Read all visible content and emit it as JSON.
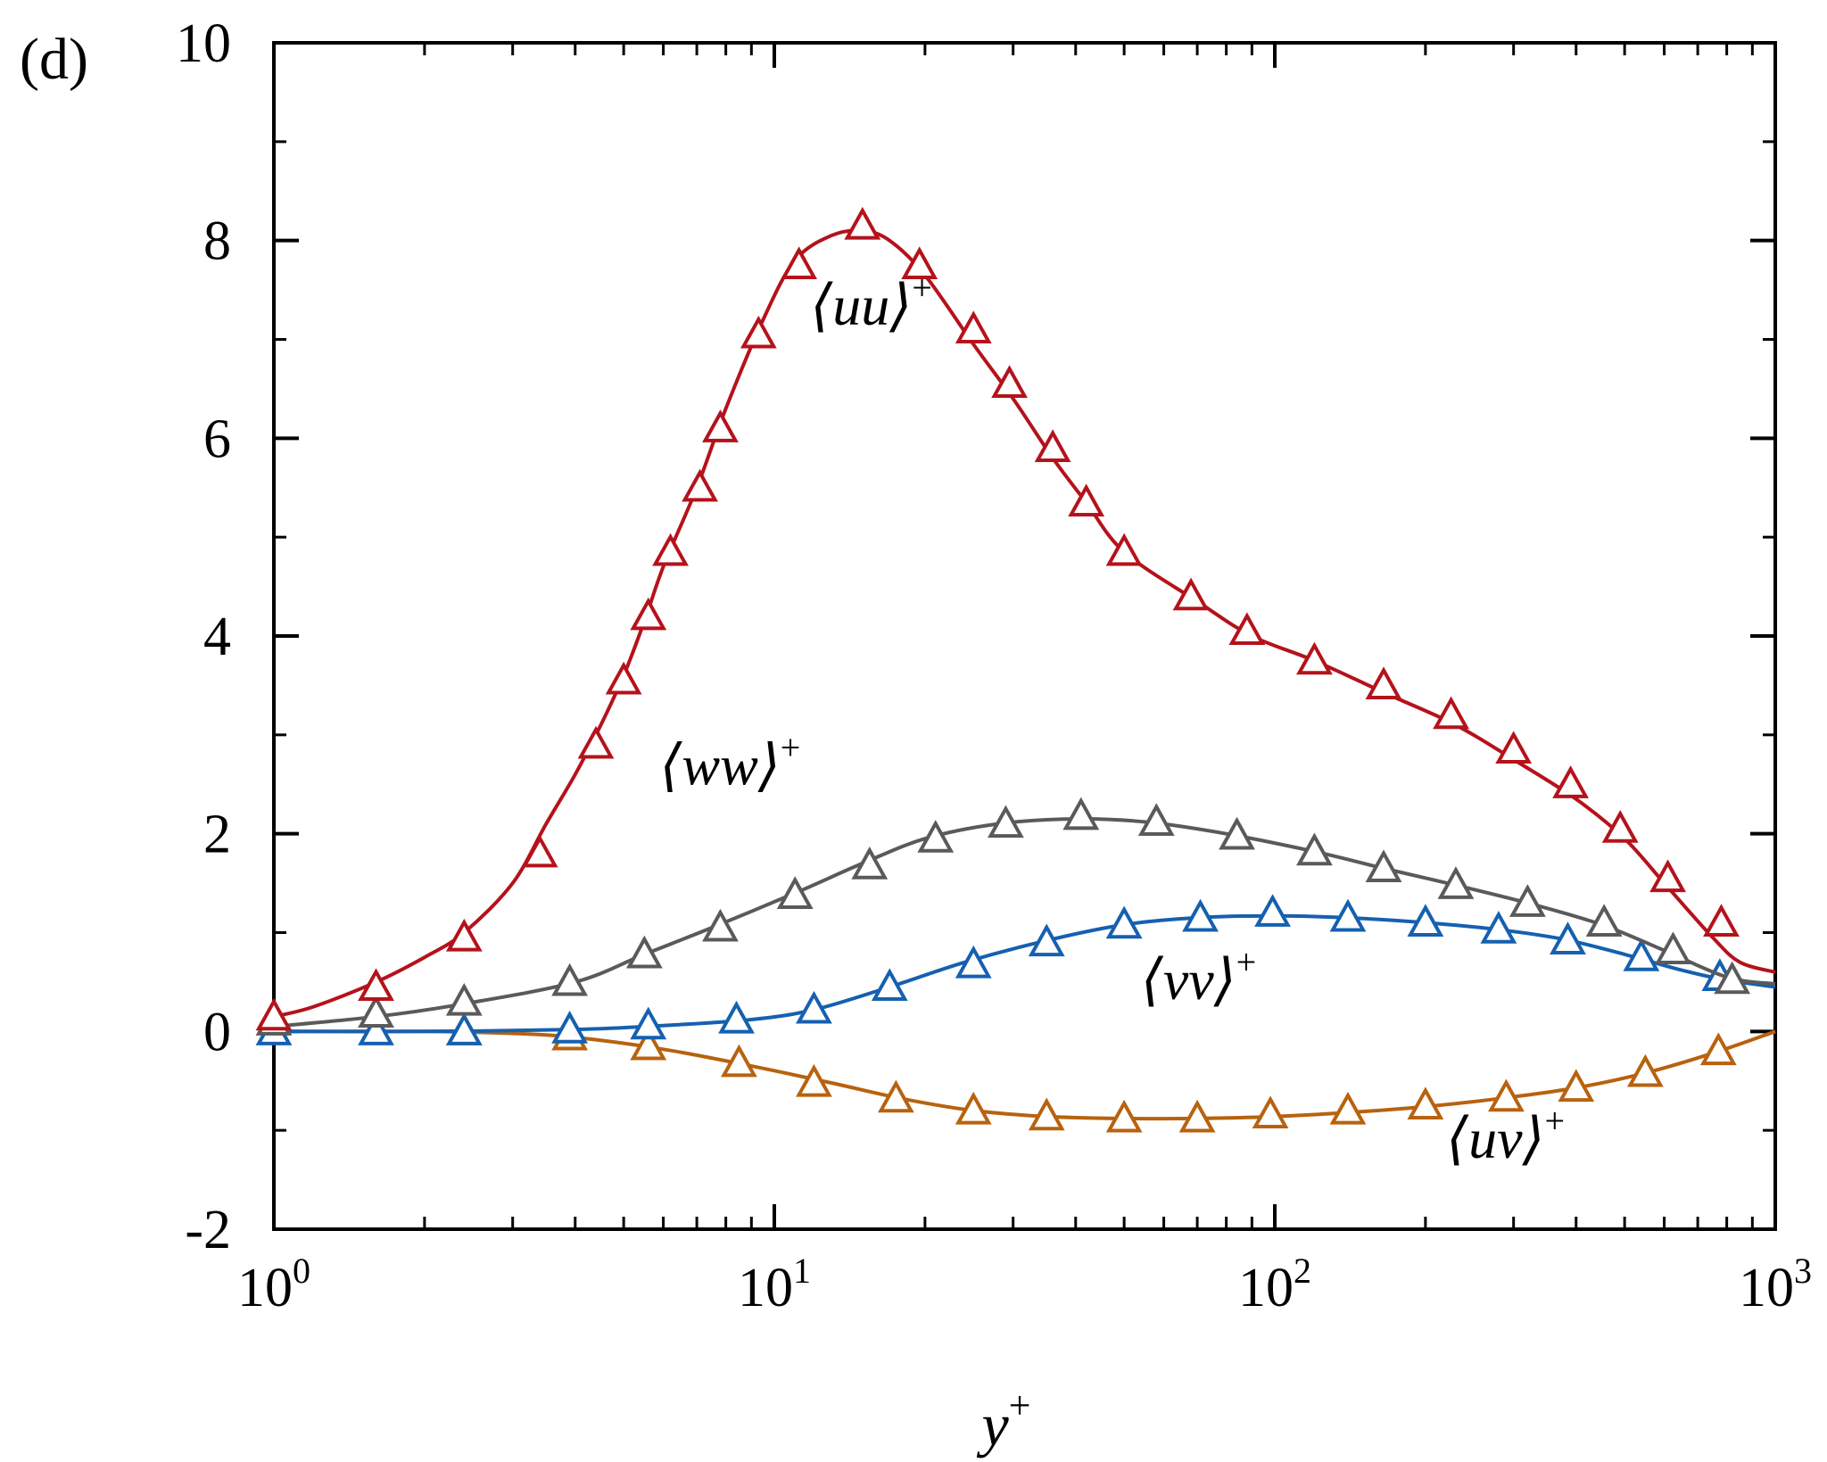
{
  "panel_label": "(d)",
  "chart_data": {
    "type": "line",
    "xscale": "log",
    "xlim": [
      1,
      1000
    ],
    "ylim": [
      -2,
      10
    ],
    "xlabel": "y+",
    "xlabel_base": "y",
    "xlabel_sup": "+",
    "ylabel": "",
    "grid": false,
    "marker": "open-triangle",
    "yticks": [
      -2,
      0,
      2,
      4,
      6,
      8,
      10
    ],
    "ytick_labels": [
      "-2",
      "0",
      "2",
      "4",
      "6",
      "8",
      "10"
    ],
    "xticks": [
      1,
      10,
      100,
      1000
    ],
    "xtick_labels": [
      {
        "base": "10",
        "exp": "0"
      },
      {
        "base": "10",
        "exp": "1"
      },
      {
        "base": "10",
        "exp": "2"
      },
      {
        "base": "10",
        "exp": "3"
      }
    ],
    "series": [
      {
        "name": "⟨uu⟩+",
        "label_text": "⟨uu⟩",
        "label_sup": "+",
        "label_at": [
          11.8,
          7.15
        ],
        "color": "#b5121b",
        "curve": [
          [
            1,
            0.15
          ],
          [
            1.2,
            0.25
          ],
          [
            1.6,
            0.5
          ],
          [
            2,
            0.75
          ],
          [
            2.4,
            1.0
          ],
          [
            3,
            1.5
          ],
          [
            3.5,
            2.1
          ],
          [
            4,
            2.6
          ],
          [
            4.5,
            3.1
          ],
          [
            5,
            3.6
          ],
          [
            5.5,
            4.15
          ],
          [
            6,
            4.7
          ],
          [
            7,
            5.5
          ],
          [
            8,
            6.3
          ],
          [
            9.5,
            7.2
          ],
          [
            11,
            7.8
          ],
          [
            13,
            8.05
          ],
          [
            15,
            8.1
          ],
          [
            17,
            8.0
          ],
          [
            20,
            7.65
          ],
          [
            25,
            6.95
          ],
          [
            30,
            6.4
          ],
          [
            36,
            5.8
          ],
          [
            42,
            5.35
          ],
          [
            50,
            4.85
          ],
          [
            70,
            4.35
          ],
          [
            90,
            4.0
          ],
          [
            120,
            3.75
          ],
          [
            170,
            3.4
          ],
          [
            230,
            3.1
          ],
          [
            300,
            2.75
          ],
          [
            400,
            2.35
          ],
          [
            500,
            1.95
          ],
          [
            600,
            1.5
          ],
          [
            750,
            0.95
          ],
          [
            850,
            0.7
          ],
          [
            1000,
            0.6
          ]
        ],
        "markers": [
          [
            1,
            0.15
          ],
          [
            1.6,
            0.45
          ],
          [
            2.4,
            0.95
          ],
          [
            3.4,
            1.8
          ],
          [
            4.4,
            2.9
          ],
          [
            5,
            3.55
          ],
          [
            5.6,
            4.2
          ],
          [
            6.2,
            4.85
          ],
          [
            7.1,
            5.5
          ],
          [
            7.8,
            6.1
          ],
          [
            9.3,
            7.05
          ],
          [
            11.2,
            7.75
          ],
          [
            15,
            8.15
          ],
          [
            19.5,
            7.75
          ],
          [
            25,
            7.1
          ],
          [
            29.5,
            6.55
          ],
          [
            36,
            5.9
          ],
          [
            42,
            5.35
          ],
          [
            50,
            4.85
          ],
          [
            68,
            4.4
          ],
          [
            88,
            4.05
          ],
          [
            120,
            3.75
          ],
          [
            165,
            3.5
          ],
          [
            225,
            3.2
          ],
          [
            300,
            2.85
          ],
          [
            390,
            2.5
          ],
          [
            490,
            2.05
          ],
          [
            610,
            1.55
          ],
          [
            780,
            1.1
          ]
        ]
      },
      {
        "name": "⟨ww⟩+",
        "label_text": "⟨ww⟩",
        "label_sup": "+",
        "label_at": [
          5.9,
          2.5
        ],
        "color": "#5a5a5a",
        "curve": [
          [
            1,
            0.05
          ],
          [
            1.6,
            0.15
          ],
          [
            2.4,
            0.28
          ],
          [
            4,
            0.5
          ],
          [
            5.5,
            0.78
          ],
          [
            7.5,
            1.05
          ],
          [
            11,
            1.4
          ],
          [
            15,
            1.7
          ],
          [
            20,
            1.95
          ],
          [
            28,
            2.1
          ],
          [
            40,
            2.15
          ],
          [
            55,
            2.12
          ],
          [
            80,
            2.0
          ],
          [
            120,
            1.82
          ],
          [
            165,
            1.65
          ],
          [
            230,
            1.48
          ],
          [
            320,
            1.3
          ],
          [
            450,
            1.08
          ],
          [
            600,
            0.82
          ],
          [
            800,
            0.55
          ],
          [
            1000,
            0.48
          ]
        ],
        "markers": [
          [
            1,
            0.1
          ],
          [
            1.6,
            0.18
          ],
          [
            2.4,
            0.3
          ],
          [
            3.9,
            0.5
          ],
          [
            5.5,
            0.78
          ],
          [
            7.8,
            1.05
          ],
          [
            11,
            1.38
          ],
          [
            15.5,
            1.68
          ],
          [
            21,
            1.95
          ],
          [
            29,
            2.1
          ],
          [
            41,
            2.18
          ],
          [
            58,
            2.12
          ],
          [
            84,
            1.98
          ],
          [
            120,
            1.82
          ],
          [
            165,
            1.65
          ],
          [
            230,
            1.48
          ],
          [
            320,
            1.3
          ],
          [
            455,
            1.1
          ],
          [
            625,
            0.82
          ],
          [
            820,
            0.52
          ]
        ]
      },
      {
        "name": "⟨vv⟩+",
        "label_text": "⟨vv⟩",
        "label_sup": "+",
        "label_at": [
          54,
          0.33
        ],
        "color": "#1560b0",
        "curve": [
          [
            1,
            0
          ],
          [
            2,
            0
          ],
          [
            4,
            0.02
          ],
          [
            6,
            0.06
          ],
          [
            9,
            0.12
          ],
          [
            12,
            0.22
          ],
          [
            17,
            0.45
          ],
          [
            24,
            0.7
          ],
          [
            35,
            0.92
          ],
          [
            50,
            1.08
          ],
          [
            70,
            1.15
          ],
          [
            100,
            1.17
          ],
          [
            140,
            1.15
          ],
          [
            200,
            1.1
          ],
          [
            280,
            1.03
          ],
          [
            380,
            0.93
          ],
          [
            500,
            0.78
          ],
          [
            650,
            0.62
          ],
          [
            800,
            0.52
          ],
          [
            1000,
            0.45
          ]
        ],
        "markers": [
          [
            1,
            0
          ],
          [
            1.6,
            0
          ],
          [
            2.4,
            0
          ],
          [
            3.9,
            0.02
          ],
          [
            5.6,
            0.06
          ],
          [
            8.4,
            0.12
          ],
          [
            12,
            0.22
          ],
          [
            17,
            0.45
          ],
          [
            25,
            0.68
          ],
          [
            35,
            0.9
          ],
          [
            50,
            1.08
          ],
          [
            71,
            1.15
          ],
          [
            99,
            1.2
          ],
          [
            140,
            1.15
          ],
          [
            200,
            1.1
          ],
          [
            280,
            1.03
          ],
          [
            385,
            0.92
          ],
          [
            540,
            0.75
          ],
          [
            775,
            0.55
          ]
        ]
      },
      {
        "name": "⟨uv⟩+",
        "label_text": "⟨uv⟩",
        "label_sup": "+",
        "label_at": [
          220,
          -1.28
        ],
        "color": "#b8620f",
        "curve": [
          [
            1,
            0
          ],
          [
            2,
            0
          ],
          [
            3,
            -0.02
          ],
          [
            4,
            -0.06
          ],
          [
            6,
            -0.18
          ],
          [
            9,
            -0.35
          ],
          [
            13,
            -0.52
          ],
          [
            18,
            -0.68
          ],
          [
            25,
            -0.8
          ],
          [
            35,
            -0.86
          ],
          [
            50,
            -0.88
          ],
          [
            70,
            -0.88
          ],
          [
            100,
            -0.86
          ],
          [
            140,
            -0.82
          ],
          [
            200,
            -0.76
          ],
          [
            280,
            -0.68
          ],
          [
            400,
            -0.57
          ],
          [
            550,
            -0.42
          ],
          [
            750,
            -0.22
          ],
          [
            1000,
            0
          ]
        ],
        "markers": [
          [
            2.4,
            0
          ],
          [
            3.9,
            -0.05
          ],
          [
            5.6,
            -0.15
          ],
          [
            8.5,
            -0.32
          ],
          [
            12,
            -0.52
          ],
          [
            17.5,
            -0.68
          ],
          [
            25,
            -0.8
          ],
          [
            35,
            -0.86
          ],
          [
            50,
            -0.88
          ],
          [
            70,
            -0.88
          ],
          [
            98,
            -0.84
          ],
          [
            140,
            -0.8
          ],
          [
            200,
            -0.75
          ],
          [
            290,
            -0.67
          ],
          [
            400,
            -0.57
          ],
          [
            550,
            -0.42
          ],
          [
            770,
            -0.2
          ]
        ]
      }
    ]
  }
}
